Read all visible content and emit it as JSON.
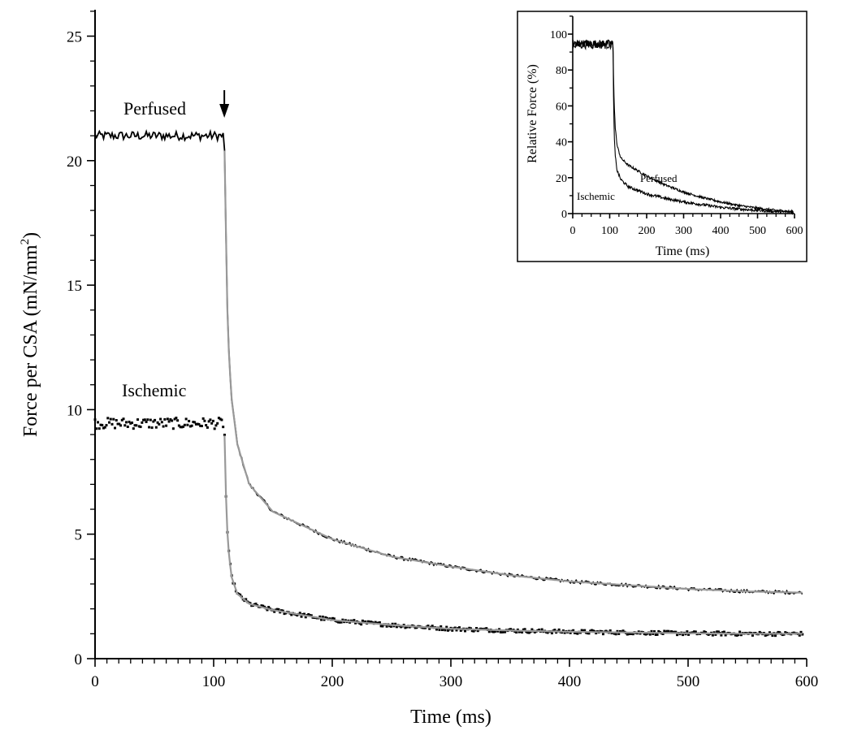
{
  "chart_data": [
    {
      "type": "line",
      "xlabel": "Time (ms)",
      "ylabel": "Force per CSA (mN/mm",
      "ylabel_superscript": "2",
      "ylabel_suffix": ")",
      "xlim": [
        0,
        600
      ],
      "ylim": [
        0,
        26
      ],
      "xticks": [
        0,
        100,
        200,
        300,
        400,
        500,
        600
      ],
      "yticks": [
        0,
        5,
        10,
        15,
        20,
        25
      ],
      "xtick_labels": [
        "0",
        "100",
        "200",
        "300",
        "400",
        "500",
        "600"
      ],
      "ytick_labels": [
        "0",
        "5",
        "10",
        "15",
        "20",
        "25"
      ],
      "grid": false,
      "arrow_annotation_x": 109,
      "series": [
        {
          "name": "Perfused",
          "style": "line",
          "color": "#000000",
          "fit_color": "#999999",
          "baseline": 21.0,
          "noise": 0.18,
          "release_time": 109,
          "x": [
            0,
            109,
            110,
            112,
            115,
            120,
            130,
            150,
            200,
            250,
            300,
            350,
            400,
            450,
            500,
            550,
            597
          ],
          "y": [
            21.0,
            21.0,
            18.0,
            13.0,
            10.5,
            8.6,
            7.0,
            5.9,
            4.8,
            4.1,
            3.7,
            3.35,
            3.1,
            2.95,
            2.8,
            2.7,
            2.65
          ]
        },
        {
          "name": "Ischemic",
          "style": "dots",
          "color": "#000000",
          "fit_color": "#999999",
          "baseline": 9.45,
          "noise": 0.22,
          "release_time": 109,
          "x": [
            0,
            109,
            110,
            112,
            115,
            120,
            130,
            150,
            200,
            250,
            300,
            350,
            400,
            450,
            500,
            550,
            597
          ],
          "y": [
            9.45,
            9.45,
            7.0,
            4.6,
            3.3,
            2.6,
            2.2,
            1.95,
            1.55,
            1.35,
            1.2,
            1.13,
            1.08,
            1.05,
            1.02,
            1.0,
            1.0
          ]
        }
      ]
    },
    {
      "type": "line",
      "xlabel": "Time (ms)",
      "ylabel": "Relative Force (%)",
      "xlim": [
        0,
        600
      ],
      "ylim": [
        0,
        110
      ],
      "xticks": [
        0,
        100,
        200,
        300,
        400,
        500,
        600
      ],
      "yticks": [
        0,
        20,
        40,
        60,
        80,
        100
      ],
      "xtick_labels": [
        "0",
        "100",
        "200",
        "300",
        "400",
        "500",
        "600"
      ],
      "ytick_labels": [
        "0",
        "20",
        "40",
        "60",
        "80",
        "100"
      ],
      "grid": false,
      "series": [
        {
          "name": "Perfused",
          "color": "#000000",
          "baseline": 95,
          "noise": 1.8,
          "release_time": 109,
          "x": [
            0,
            109,
            110,
            112,
            115,
            120,
            130,
            150,
            200,
            250,
            300,
            350,
            400,
            450,
            500,
            550,
            597
          ],
          "y": [
            95,
            95,
            82,
            62,
            48,
            38,
            31,
            27,
            21,
            16,
            12,
            9,
            6.5,
            4.5,
            3,
            1.8,
            1.0
          ]
        },
        {
          "name": "Ischemic",
          "color": "#000000",
          "baseline": 94,
          "noise": 2.2,
          "release_time": 109,
          "x": [
            0,
            109,
            110,
            112,
            115,
            120,
            130,
            150,
            200,
            250,
            300,
            350,
            400,
            450,
            500,
            550,
            597
          ],
          "y": [
            94,
            94,
            70,
            45,
            32,
            24,
            19,
            15,
            11,
            8.5,
            6.5,
            5,
            3.5,
            2.5,
            1.8,
            1.2,
            0.8
          ]
        }
      ]
    }
  ]
}
